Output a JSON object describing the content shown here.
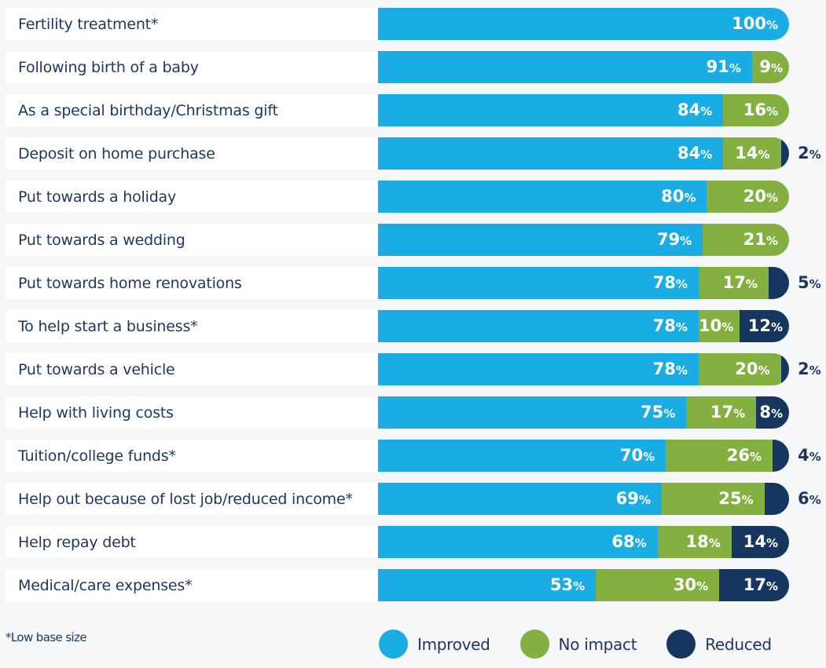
{
  "chart_data": {
    "type": "bar",
    "orientation": "horizontal",
    "stacked": true,
    "title": "",
    "xlabel": "",
    "ylabel": "",
    "xlim": [
      0,
      100
    ],
    "value_suffix": "%",
    "categories": [
      "Fertility treatment*",
      "Following birth of a baby",
      "As a special birthday/Christmas gift",
      "Deposit on home purchase",
      "Put towards a holiday",
      "Put towards a wedding",
      "Put towards home renovations",
      "To help start a business*",
      "Put towards a vehicle",
      "Help with living costs",
      "Tuition/college funds*",
      "Help out because of lost job/reduced income*",
      "Help repay debt",
      "Medical/care expenses*"
    ],
    "series": [
      {
        "name": "Improved",
        "key": "improved",
        "color": "#19ade3",
        "values": [
          100,
          91,
          84,
          84,
          80,
          79,
          78,
          78,
          78,
          75,
          70,
          69,
          68,
          53
        ]
      },
      {
        "name": "No impact",
        "key": "noimpact",
        "color": "#84b041",
        "values": [
          0,
          9,
          16,
          14,
          20,
          21,
          17,
          10,
          20,
          17,
          26,
          25,
          18,
          30
        ]
      },
      {
        "name": "Reduced",
        "key": "reduced",
        "color": "#14365f",
        "values": [
          0,
          0,
          0,
          2,
          0,
          0,
          5,
          12,
          2,
          8,
          4,
          6,
          14,
          17
        ]
      }
    ],
    "legend_position": "bottom-right",
    "grid": false,
    "annotations": [
      "*Low base size"
    ]
  },
  "footnote": "*Low base size",
  "legend": [
    {
      "label": "Improved",
      "color": "#19ade3"
    },
    {
      "label": "No impact",
      "color": "#84b041"
    },
    {
      "label": "Reduced",
      "color": "#14365f"
    }
  ]
}
